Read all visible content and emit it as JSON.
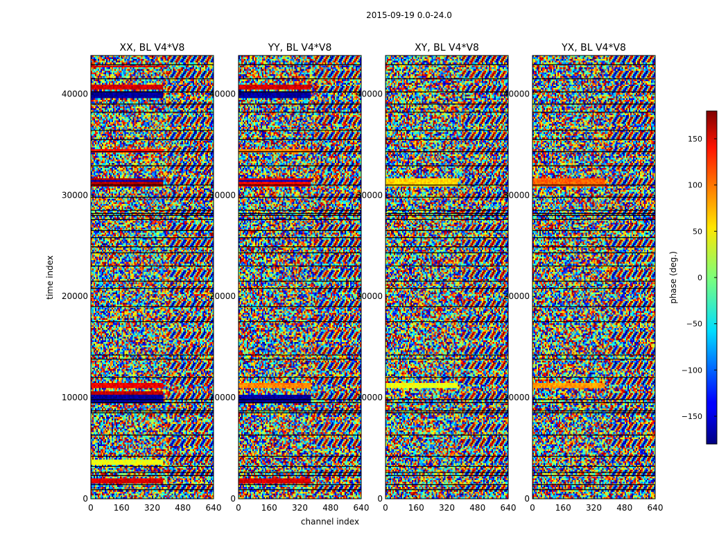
{
  "figure": {
    "suptitle": "2015-09-19 0.0-24.0",
    "xlabel": "channel index",
    "ylabel": "time index"
  },
  "chart_data": {
    "type": "heatmap",
    "title": "2015-09-19 0.0-24.0",
    "xlabel": "channel index",
    "ylabel": "time index",
    "xlim": [
      0,
      640
    ],
    "ylim": [
      0,
      43800
    ],
    "xticks": [
      0,
      160,
      320,
      480,
      640
    ],
    "yticks": [
      0,
      10000,
      20000,
      30000,
      40000
    ],
    "panels": [
      {
        "name": "XX",
        "title": "XX, BL V4*V8"
      },
      {
        "name": "YY",
        "title": "YY, BL V4*V8"
      },
      {
        "name": "XY",
        "title": "XY, BL V4*V8"
      },
      {
        "name": "YX",
        "title": "YX, BL V4*V8"
      }
    ],
    "colormap": "jet",
    "colorbar": {
      "label": "phase (deg.)",
      "range": [
        -180,
        180
      ],
      "ticks": [
        -150,
        -100,
        -50,
        0,
        50,
        100,
        150
      ]
    },
    "flagged_time_rows": [
      900,
      1400,
      2300,
      2600,
      3200,
      4200,
      6300,
      8500,
      8700,
      9500,
      9800,
      12000,
      13800,
      14200,
      17500,
      19000,
      20800,
      21500,
      23000,
      24300,
      24900,
      25800,
      26500,
      27600,
      28000,
      28200,
      28500,
      29800,
      31000,
      32900,
      34300,
      35500,
      36400,
      38200,
      39000,
      40200,
      41500,
      42900
    ],
    "coherent_bands": [
      {
        "panel": "XX",
        "t0": 1600,
        "t1": 2000,
        "ch0": 0,
        "ch1": 380,
        "phase": 150
      },
      {
        "panel": "XX",
        "t0": 3400,
        "t1": 3800,
        "ch0": 0,
        "ch1": 380,
        "phase": 40
      },
      {
        "panel": "XX",
        "t0": 9500,
        "t1": 10300,
        "ch0": 0,
        "ch1": 380,
        "phase": -170
      },
      {
        "panel": "XX",
        "t0": 10300,
        "t1": 10600,
        "ch0": 0,
        "ch1": 380,
        "phase": 160
      },
      {
        "panel": "XX",
        "t0": 10900,
        "t1": 11400,
        "ch0": 0,
        "ch1": 380,
        "phase": 140
      },
      {
        "panel": "XX",
        "t0": 30900,
        "t1": 31600,
        "ch0": 0,
        "ch1": 380,
        "phase": 165
      },
      {
        "panel": "XX",
        "t0": 31300,
        "t1": 31500,
        "ch0": 0,
        "ch1": 380,
        "phase": -160
      },
      {
        "panel": "XX",
        "t0": 34200,
        "t1": 34600,
        "ch0": 0,
        "ch1": 380,
        "phase": 130
      },
      {
        "panel": "XX",
        "t0": 39600,
        "t1": 40200,
        "ch0": 0,
        "ch1": 380,
        "phase": -170
      },
      {
        "panel": "XX",
        "t0": 40400,
        "t1": 41000,
        "ch0": 0,
        "ch1": 380,
        "phase": 150
      },
      {
        "panel": "XX",
        "t0": 42600,
        "t1": 42800,
        "ch0": 0,
        "ch1": 380,
        "phase": 150
      },
      {
        "panel": "YY",
        "t0": 1600,
        "t1": 2000,
        "ch0": 0,
        "ch1": 380,
        "phase": 150
      },
      {
        "panel": "YY",
        "t0": 9500,
        "t1": 10300,
        "ch0": 0,
        "ch1": 380,
        "phase": -170
      },
      {
        "panel": "YY",
        "t0": 10900,
        "t1": 11400,
        "ch0": 0,
        "ch1": 380,
        "phase": 90
      },
      {
        "panel": "YY",
        "t0": 30900,
        "t1": 31600,
        "ch0": 0,
        "ch1": 380,
        "phase": 140
      },
      {
        "panel": "YY",
        "t0": 31300,
        "t1": 31500,
        "ch0": 0,
        "ch1": 380,
        "phase": -160
      },
      {
        "panel": "YY",
        "t0": 34200,
        "t1": 34600,
        "ch0": 0,
        "ch1": 380,
        "phase": 90
      },
      {
        "panel": "YY",
        "t0": 39600,
        "t1": 40200,
        "ch0": 0,
        "ch1": 380,
        "phase": -170
      },
      {
        "panel": "YY",
        "t0": 40400,
        "t1": 41000,
        "ch0": 0,
        "ch1": 380,
        "phase": 150
      },
      {
        "panel": "XY",
        "t0": 30900,
        "t1": 31600,
        "ch0": 0,
        "ch1": 380,
        "phase": 60
      },
      {
        "panel": "XY",
        "t0": 10900,
        "t1": 11400,
        "ch0": 0,
        "ch1": 380,
        "phase": 40
      },
      {
        "panel": "YX",
        "t0": 30900,
        "t1": 31600,
        "ch0": 0,
        "ch1": 380,
        "phase": 100
      },
      {
        "panel": "YX",
        "t0": 10900,
        "t1": 11400,
        "ch0": 0,
        "ch1": 380,
        "phase": 80
      }
    ]
  }
}
